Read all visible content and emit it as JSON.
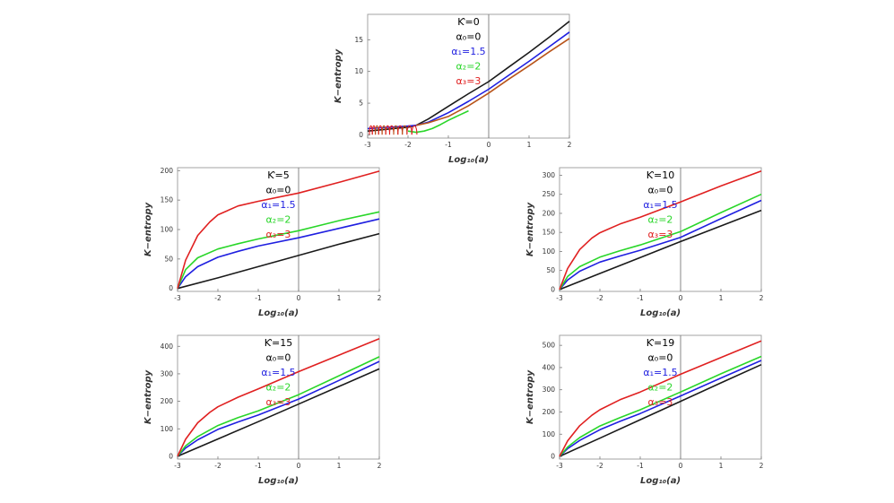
{
  "chart_data": [
    {
      "id": "k0",
      "type": "line",
      "xlabel": "Log₁₀(a)",
      "ylabel": "K−entropy",
      "xlim": [
        -3,
        2
      ],
      "ylim": [
        -0.5,
        19
      ],
      "xticks": [
        -3,
        -2,
        -1,
        0,
        1,
        2
      ],
      "yticks": [
        0,
        5,
        10,
        15
      ],
      "legend": [
        "Ƙ=0",
        "α₀=0",
        "α₁=1.5",
        "α₂=2",
        "α₃=3"
      ],
      "legend_colors": [
        "#000000",
        "#000000",
        "#1f1fe0",
        "#29d629",
        "#e02020"
      ],
      "legend_position": "top-center",
      "series": [
        {
          "name": "α₀=0",
          "color": "#1a1a1a",
          "x": [
            -3,
            -2.5,
            -2.2,
            -2.0,
            -1.8,
            -1.5,
            -1.0,
            -0.5,
            0,
            0.5,
            1,
            1.5,
            2
          ],
          "y": [
            0.6,
            0.9,
            1.1,
            1.2,
            1.5,
            2.5,
            4.5,
            6.5,
            8.4,
            10.7,
            13.0,
            15.4,
            17.9
          ]
        },
        {
          "name": "α₁=1.5",
          "color": "#1f1fe0",
          "x": [
            -3,
            -2.5,
            -2.0,
            -1.8,
            -1.5,
            -1.0,
            -0.5,
            0,
            0.5,
            1,
            1.5,
            2
          ],
          "y": [
            1.0,
            1.2,
            1.4,
            1.5,
            2.0,
            3.5,
            5.3,
            7.2,
            9.4,
            11.6,
            13.9,
            16.2
          ]
        },
        {
          "name": "α₂=2",
          "color": "#29d629",
          "x": [
            -2.0,
            -1.8,
            -1.6,
            -1.4,
            -1.2,
            -1.0,
            -0.7,
            -0.5
          ],
          "y": [
            0.6,
            0.4,
            0.6,
            1.0,
            1.6,
            2.3,
            3.2,
            3.8
          ]
        },
        {
          "name": "α₃=3",
          "color": "#b8541a",
          "x": [
            -1.8,
            -1.5,
            -1.0,
            -0.5,
            0,
            0.5,
            1,
            1.5,
            2
          ],
          "y": [
            1.5,
            1.9,
            2.9,
            4.6,
            6.6,
            8.8,
            10.9,
            13.1,
            15.2
          ]
        }
      ]
    },
    {
      "id": "k5",
      "type": "line",
      "xlabel": "Log₁₀(a)",
      "ylabel": "K−entropy",
      "xlim": [
        -3,
        2
      ],
      "ylim": [
        -5,
        205
      ],
      "xticks": [
        -3,
        -2,
        -1,
        0,
        1,
        2
      ],
      "yticks": [
        0,
        50,
        100,
        150,
        200
      ],
      "legend": [
        "Ƙ=5",
        "α₀=0",
        "α₁=1.5",
        "α₂=2",
        "α₃=3"
      ],
      "legend_colors": [
        "#000000",
        "#000000",
        "#1f1fe0",
        "#29d629",
        "#e02020"
      ],
      "legend_position": "top-center",
      "series": [
        {
          "name": "α₀=0",
          "color": "#1a1a1a",
          "x": [
            -3,
            -2,
            -1,
            0,
            1,
            2
          ],
          "y": [
            0,
            18,
            37,
            56,
            75,
            93
          ]
        },
        {
          "name": "α₁=1.5",
          "color": "#1f1fe0",
          "x": [
            -3,
            -2.8,
            -2.5,
            -2.0,
            -1.5,
            -1.0,
            0,
            1,
            2
          ],
          "y": [
            0,
            20,
            37,
            53,
            63,
            72,
            86,
            102,
            118
          ]
        },
        {
          "name": "α₂=2",
          "color": "#29d629",
          "x": [
            -3,
            -2.8,
            -2.5,
            -2.0,
            -1.5,
            -1.0,
            0,
            1,
            2
          ],
          "y": [
            0,
            32,
            52,
            67,
            76,
            84,
            98,
            115,
            130
          ]
        },
        {
          "name": "α₃=3",
          "color": "#e02020",
          "x": [
            -3,
            -2.8,
            -2.5,
            -2.2,
            -2.0,
            -1.5,
            -1.0,
            0,
            1,
            2
          ],
          "y": [
            0,
            48,
            90,
            113,
            125,
            140,
            148,
            162,
            180,
            199
          ]
        }
      ]
    },
    {
      "id": "k10",
      "type": "line",
      "xlabel": "Log₁₀(a)",
      "ylabel": "K−entropy",
      "xlim": [
        -3,
        2
      ],
      "ylim": [
        -5,
        320
      ],
      "xticks": [
        -3,
        -2,
        -1,
        0,
        1,
        2
      ],
      "yticks": [
        0,
        50,
        100,
        150,
        200,
        250,
        300
      ],
      "legend": [
        "Ƙ=10",
        "α₀=0",
        "α₁=1.5",
        "α₂=2",
        "α₃=3"
      ],
      "legend_colors": [
        "#000000",
        "#000000",
        "#1f1fe0",
        "#29d629",
        "#e02020"
      ],
      "legend_position": "top-center",
      "series": [
        {
          "name": "α₀=0",
          "color": "#1a1a1a",
          "x": [
            -3,
            -2,
            -1,
            0,
            1,
            2
          ],
          "y": [
            0,
            42,
            84,
            126,
            167,
            208
          ]
        },
        {
          "name": "α₁=1.5",
          "color": "#1f1fe0",
          "x": [
            -3,
            -2.8,
            -2.5,
            -2.0,
            -1.5,
            -1.0,
            0,
            1,
            2
          ],
          "y": [
            0,
            25,
            48,
            72,
            88,
            103,
            137,
            186,
            234
          ]
        },
        {
          "name": "α₂=2",
          "color": "#29d629",
          "x": [
            -3,
            -2.8,
            -2.5,
            -2.0,
            -1.5,
            -1.0,
            0,
            1,
            2
          ],
          "y": [
            0,
            34,
            60,
            85,
            102,
            117,
            152,
            202,
            250
          ]
        },
        {
          "name": "α₃=3",
          "color": "#e02020",
          "x": [
            -3,
            -2.8,
            -2.5,
            -2.2,
            -2.0,
            -1.5,
            -1.0,
            0,
            1,
            2
          ],
          "y": [
            0,
            55,
            105,
            135,
            149,
            172,
            190,
            230,
            272,
            311
          ]
        }
      ]
    },
    {
      "id": "k15",
      "type": "line",
      "xlabel": "Log₁₀(a)",
      "ylabel": "K−entropy",
      "xlim": [
        -3,
        2
      ],
      "ylim": [
        -10,
        440
      ],
      "xticks": [
        -3,
        -2,
        -1,
        0,
        1,
        2
      ],
      "yticks": [
        0,
        100,
        200,
        300,
        400
      ],
      "legend": [
        "Ƙ=15",
        "α₀=0",
        "α₁=1.5",
        "α₂=2",
        "α₃=3"
      ],
      "legend_colors": [
        "#000000",
        "#000000",
        "#1f1fe0",
        "#29d629",
        "#e02020"
      ],
      "legend_position": "top-center",
      "series": [
        {
          "name": "α₀=0",
          "color": "#1a1a1a",
          "x": [
            -3,
            -2,
            -1,
            0,
            1,
            2
          ],
          "y": [
            0,
            63,
            126,
            190,
            254,
            318
          ]
        },
        {
          "name": "α₁=1.5",
          "color": "#1f1fe0",
          "x": [
            -3,
            -2.8,
            -2.5,
            -2.0,
            -1.5,
            -1.0,
            0,
            1,
            2
          ],
          "y": [
            0,
            30,
            60,
            98,
            125,
            150,
            208,
            276,
            345
          ]
        },
        {
          "name": "α₂=2",
          "color": "#29d629",
          "x": [
            -3,
            -2.8,
            -2.5,
            -2.0,
            -1.5,
            -1.0,
            0,
            1,
            2
          ],
          "y": [
            0,
            38,
            72,
            112,
            141,
            165,
            224,
            293,
            362
          ]
        },
        {
          "name": "α₃=3",
          "color": "#e02020",
          "x": [
            -3,
            -2.8,
            -2.5,
            -2.2,
            -2.0,
            -1.5,
            -1.0,
            0,
            1,
            2
          ],
          "y": [
            0,
            62,
            122,
            160,
            180,
            215,
            245,
            308,
            368,
            428
          ]
        }
      ]
    },
    {
      "id": "k19",
      "type": "line",
      "xlabel": "Log₁₀(a)",
      "ylabel": "K−entropy",
      "xlim": [
        -3,
        2
      ],
      "ylim": [
        -12,
        545
      ],
      "xticks": [
        -3,
        -2,
        -1,
        0,
        1,
        2
      ],
      "yticks": [
        0,
        100,
        200,
        300,
        400,
        500
      ],
      "legend": [
        "Ƙ=19",
        "α₀=0",
        "α₁=1.5",
        "α₂=2",
        "α₃=3"
      ],
      "legend_colors": [
        "#000000",
        "#000000",
        "#1f1fe0",
        "#29d629",
        "#e02020"
      ],
      "legend_position": "top-center",
      "series": [
        {
          "name": "α₀=0",
          "color": "#1a1a1a",
          "x": [
            -3,
            -2,
            -1,
            0,
            1,
            2
          ],
          "y": [
            0,
            82,
            165,
            248,
            331,
            413
          ]
        },
        {
          "name": "α₁=1.5",
          "color": "#1f1fe0",
          "x": [
            -3,
            -2.8,
            -2.5,
            -2.0,
            -1.5,
            -1.0,
            0,
            1,
            2
          ],
          "y": [
            0,
            35,
            72,
            120,
            158,
            193,
            272,
            353,
            432
          ]
        },
        {
          "name": "α₂=2",
          "color": "#29d629",
          "x": [
            -3,
            -2.8,
            -2.5,
            -2.0,
            -1.5,
            -1.0,
            0,
            1,
            2
          ],
          "y": [
            0,
            42,
            85,
            137,
            175,
            210,
            290,
            372,
            450
          ]
        },
        {
          "name": "α₃=3",
          "color": "#e02020",
          "x": [
            -3,
            -2.8,
            -2.5,
            -2.2,
            -2.0,
            -1.5,
            -1.0,
            0,
            1,
            2
          ],
          "y": [
            0,
            70,
            138,
            185,
            210,
            255,
            290,
            370,
            445,
            520
          ]
        }
      ]
    }
  ]
}
